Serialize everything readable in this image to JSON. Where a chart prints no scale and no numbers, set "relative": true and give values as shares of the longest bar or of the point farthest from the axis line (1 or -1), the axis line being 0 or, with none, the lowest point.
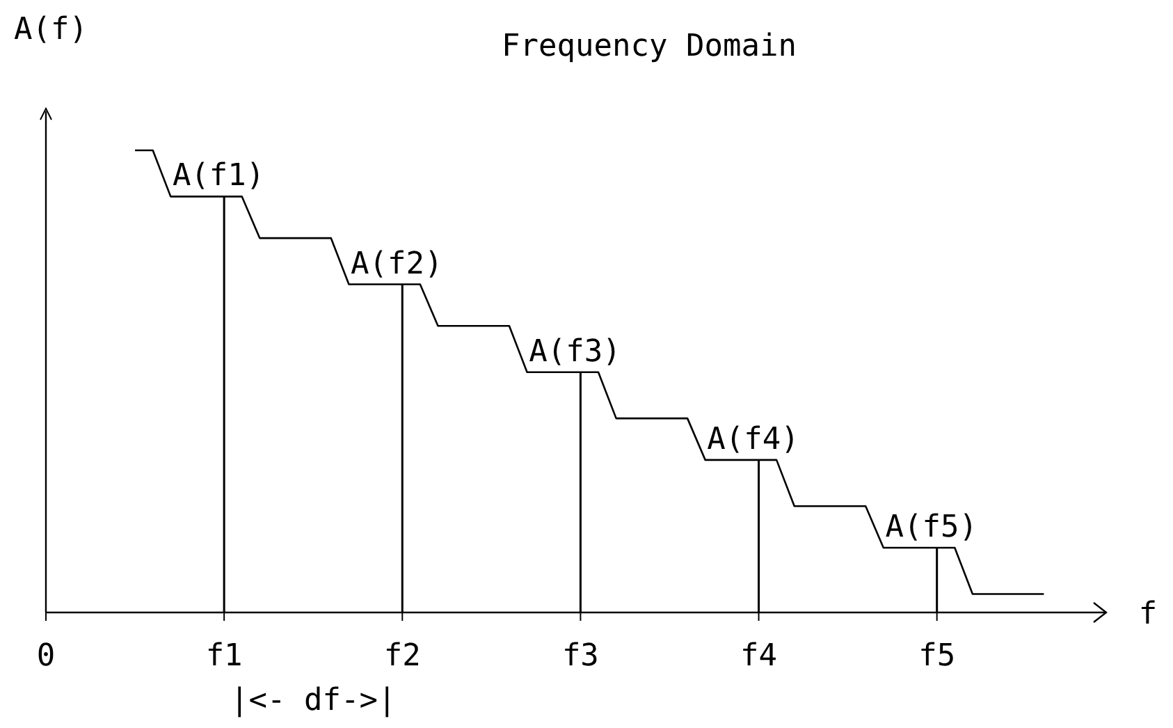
{
  "chart_data": {
    "type": "bar",
    "title": "Frequency Domain",
    "xlabel": "f",
    "ylabel": "A(f)",
    "relative": true,
    "grid": false,
    "categories": [
      "0",
      null,
      null,
      null,
      null,
      null,
      null,
      null,
      null,
      null,
      "f1",
      null,
      null,
      null,
      null,
      null,
      null,
      null,
      null,
      null,
      "f2",
      null,
      null,
      null,
      null,
      null,
      null,
      null,
      null,
      null,
      "f3",
      null,
      null,
      null,
      null,
      null,
      null,
      null,
      null,
      null,
      "f4",
      null,
      null,
      null,
      null,
      null,
      null,
      null,
      null,
      null,
      "f5",
      null,
      null,
      null,
      null,
      null,
      null,
      null,
      null,
      null
    ],
    "series": [
      {
        "color": "#000000",
        "values": [
          null,
          null,
          null,
          null,
          null,
          null,
          null,
          null,
          null,
          null,
          0.9,
          null,
          null,
          null,
          null,
          null,
          null,
          null,
          null,
          null,
          0.71,
          null,
          null,
          null,
          null,
          null,
          null,
          null,
          null,
          null,
          0.52,
          null,
          null,
          null,
          null,
          null,
          null,
          null,
          null,
          null,
          0.33,
          null,
          null,
          null,
          null,
          null,
          null,
          null,
          null,
          null,
          0.14,
          null,
          null,
          null,
          null,
          null,
          null,
          null,
          null,
          null
        ]
      },
      {
        "type": "line",
        "color": "#000000",
        "values": [
          null,
          null,
          null,
          null,
          null,
          1.0,
          1.0,
          0.9,
          0.9,
          0.9,
          0.9,
          0.9,
          0.81,
          0.81,
          0.81,
          0.81,
          0.81,
          0.71,
          0.71,
          0.71,
          0.71,
          0.71,
          0.62,
          0.62,
          0.62,
          0.62,
          0.62,
          0.52,
          0.52,
          0.52,
          0.52,
          0.52,
          0.42,
          0.42,
          0.42,
          0.42,
          0.42,
          0.33,
          0.33,
          0.33,
          0.33,
          0.33,
          0.23,
          0.23,
          0.23,
          0.23,
          0.23,
          0.14,
          0.14,
          0.14,
          0.14,
          0.14,
          0.04,
          0.04,
          0.04,
          0.04,
          0.04,
          null,
          null,
          null
        ]
      }
    ],
    "annotations": [
      {
        "text": "A(f1)",
        "x": "f1",
        "y": 0.9
      },
      {
        "text": "A(f2)",
        "x": "f2",
        "y": 0.71
      },
      {
        "text": "A(f3)",
        "x": "f3",
        "y": 0.52
      },
      {
        "text": "A(f4)",
        "x": "f4",
        "y": 0.33
      },
      {
        "text": "A(f5)",
        "x": "f5",
        "y": 0.14
      },
      "|<- df->|"
    ]
  }
}
